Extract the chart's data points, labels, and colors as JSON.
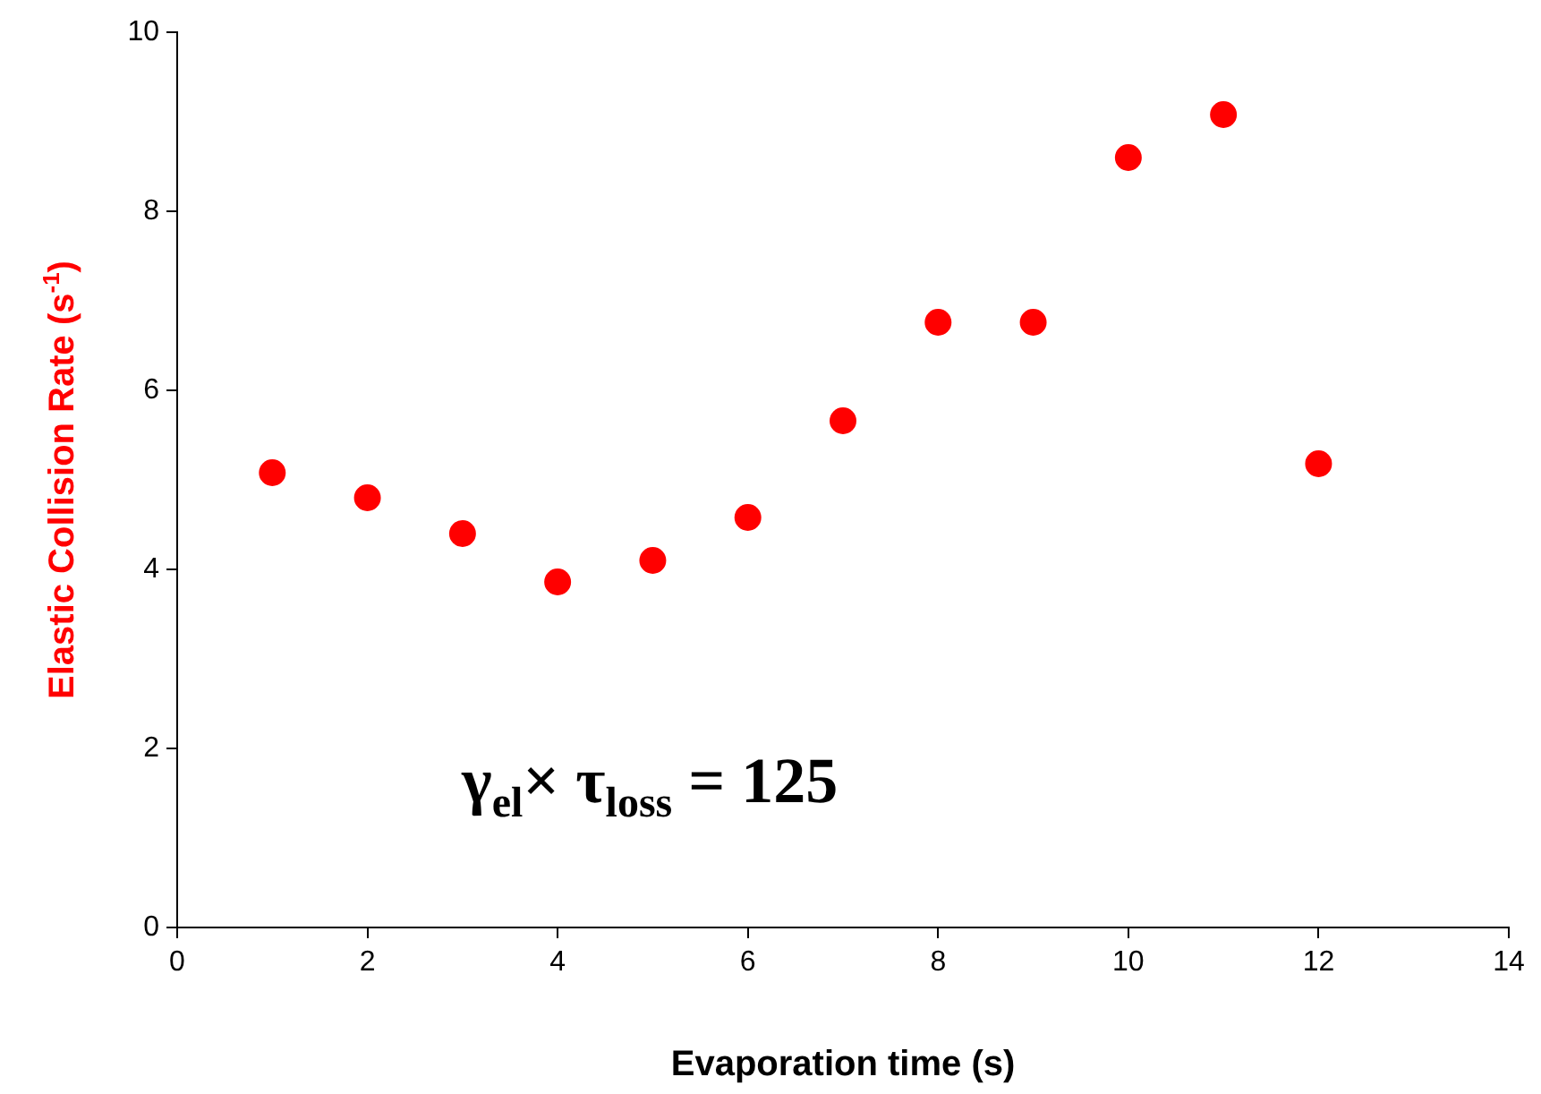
{
  "chart_data": {
    "type": "scatter",
    "xlabel": "Evaporation time (s)",
    "ylabel": "Elastic Collision Rate (s$^{-1}$)",
    "x": [
      1,
      2,
      3,
      4,
      5,
      6,
      7,
      8,
      9,
      10,
      11,
      12
    ],
    "series": [
      {
        "color": "#ff0000",
        "values": [
          5.08,
          4.8,
          4.4,
          3.86,
          4.1,
          4.58,
          5.66,
          6.76,
          6.76,
          8.6,
          9.08,
          5.18
        ]
      }
    ],
    "xlim": [
      0,
      14
    ],
    "xticks": [
      0,
      2,
      4,
      6,
      8,
      10,
      12,
      14
    ],
    "ylim": [
      0,
      10
    ],
    "yticks": [
      0,
      2,
      4,
      6,
      8,
      10
    ],
    "grid": false,
    "legend": false,
    "marker": "circle",
    "annotations": [
      "γ$_{el}$× τ$_{loss}$ = 125"
    ]
  }
}
